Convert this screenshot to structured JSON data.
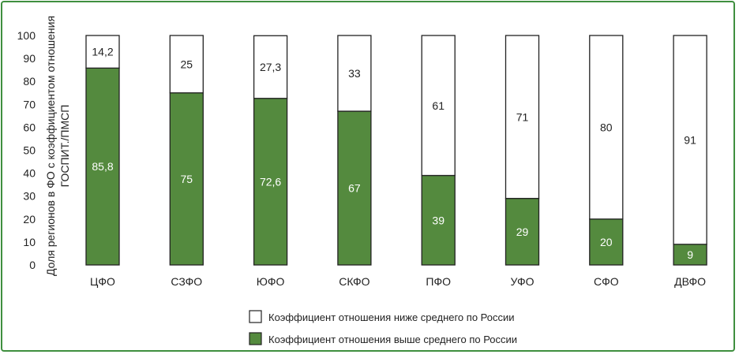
{
  "chart_data": {
    "type": "bar",
    "stacked": true,
    "categories": [
      "ЦФО",
      "СЗФО",
      "ЮФО",
      "СКФО",
      "ПФО",
      "УФО",
      "СФО",
      "ДВФО"
    ],
    "series": [
      {
        "name": "Коэффициент отношения выше среднего по России",
        "values": [
          85.8,
          75,
          72.6,
          67,
          39,
          29,
          20,
          9
        ],
        "labels": [
          "85,8",
          "75",
          "72,6",
          "67",
          "39",
          "29",
          "20",
          "9"
        ],
        "color": "#548a3e"
      },
      {
        "name": "Коэффициент отношения ниже среднего по России",
        "values": [
          14.2,
          25,
          27.3,
          33,
          61,
          71,
          80,
          91
        ],
        "labels": [
          "14,2",
          "25",
          "27,3",
          "33",
          "61",
          "71",
          "80",
          "91"
        ],
        "color": "#ffffff"
      }
    ],
    "ylabel_lines": [
      "Доля регионов в ФО с коэффициентом отношения",
      "ГОСПИТ./ПМСП"
    ],
    "xlabel": "",
    "ylim": [
      0,
      100
    ],
    "yticks": [
      0,
      10,
      20,
      30,
      40,
      50,
      60,
      70,
      80,
      90,
      100
    ],
    "grid": false,
    "legend_position": "bottom",
    "legend_order": [
      1,
      0
    ]
  }
}
